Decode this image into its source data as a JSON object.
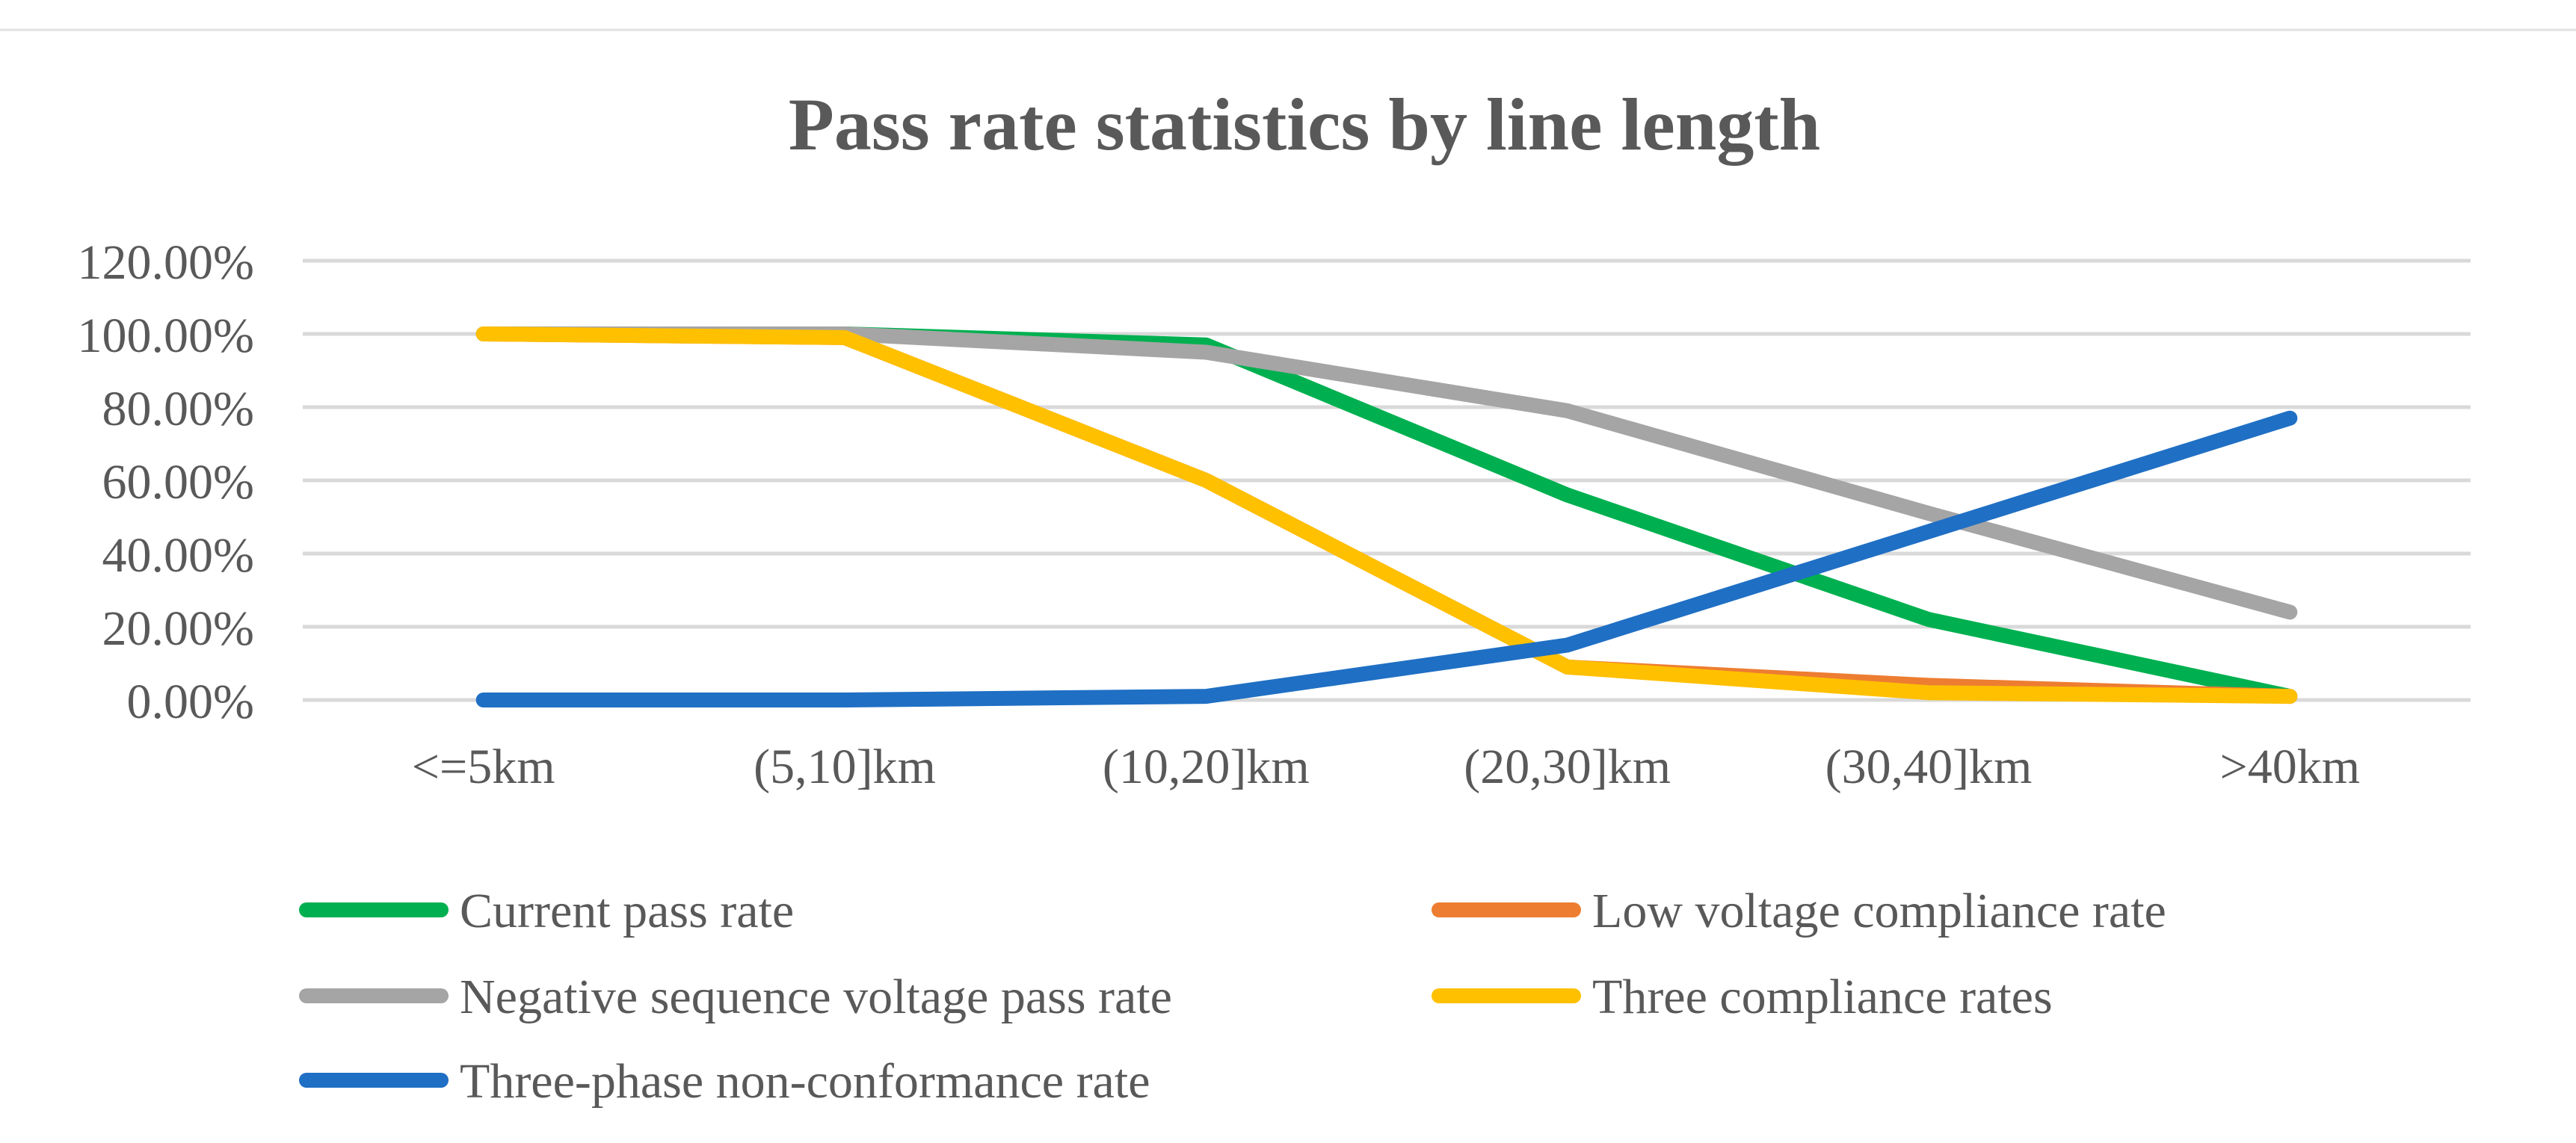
{
  "chart_data": {
    "type": "line",
    "title": "Pass rate statistics by line length",
    "xlabel": "",
    "ylabel": "",
    "ylim": [
      0,
      1.2
    ],
    "yticks": [
      0,
      0.2,
      0.4,
      0.6,
      0.8,
      1.0,
      1.2
    ],
    "ytick_labels": [
      "0.00%",
      "20.00%",
      "40.00%",
      "60.00%",
      "80.00%",
      "100.00%",
      "120.00%"
    ],
    "categories": [
      "<=5km",
      "(5,10]km",
      "(10,20]km",
      "(20,30]km",
      "(30,40]km",
      ">40km"
    ],
    "grid": true,
    "legend_position": "bottom",
    "series": [
      {
        "name": "Current pass rate",
        "color": "#00b050",
        "values": [
          1.0,
          1.0,
          0.97,
          0.56,
          0.22,
          0.01
        ]
      },
      {
        "name": "Low voltage compliance rate",
        "color": "#ed7d31",
        "values": [
          1.0,
          0.99,
          0.6,
          0.09,
          0.04,
          0.01
        ]
      },
      {
        "name": "Negative sequence voltage pass rate",
        "color": "#a5a5a5",
        "values": [
          1.0,
          1.0,
          0.95,
          0.79,
          0.51,
          0.24
        ]
      },
      {
        "name": "Three compliance rates",
        "color": "#ffc000",
        "values": [
          1.0,
          0.99,
          0.6,
          0.09,
          0.02,
          0.01
        ]
      },
      {
        "name": "Three-phase non-conformance rate",
        "color": "#1f6fc4",
        "values": [
          0.0,
          0.0,
          0.01,
          0.15,
          0.46,
          0.77
        ]
      }
    ]
  }
}
